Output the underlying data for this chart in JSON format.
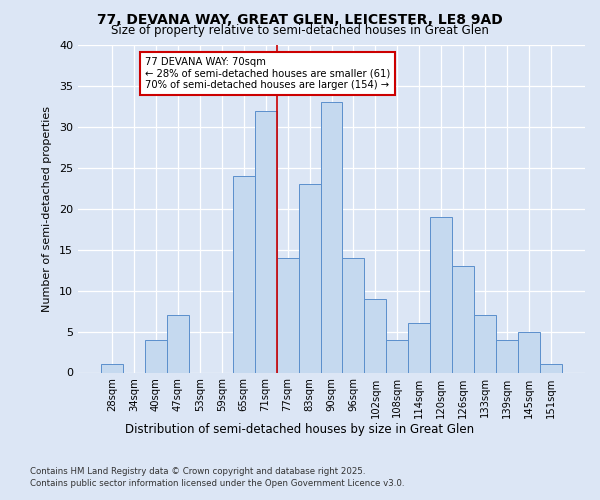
{
  "title1": "77, DEVANA WAY, GREAT GLEN, LEICESTER, LE8 9AD",
  "title2": "Size of property relative to semi-detached houses in Great Glen",
  "xlabel": "Distribution of semi-detached houses by size in Great Glen",
  "ylabel": "Number of semi-detached properties",
  "categories": [
    "28sqm",
    "34sqm",
    "40sqm",
    "47sqm",
    "53sqm",
    "59sqm",
    "65sqm",
    "71sqm",
    "77sqm",
    "83sqm",
    "90sqm",
    "96sqm",
    "102sqm",
    "108sqm",
    "114sqm",
    "120sqm",
    "126sqm",
    "133sqm",
    "139sqm",
    "145sqm",
    "151sqm"
  ],
  "values": [
    1,
    0,
    4,
    7,
    0,
    0,
    24,
    32,
    14,
    23,
    33,
    14,
    9,
    4,
    6,
    19,
    13,
    7,
    4,
    5,
    1
  ],
  "bar_color": "#c5d9ef",
  "bar_edge_color": "#5b8fcc",
  "highlight_x": "71sqm",
  "highlight_color": "#cc0000",
  "annotation_title": "77 DEVANA WAY: 70sqm",
  "annotation_line1": "← 28% of semi-detached houses are smaller (61)",
  "annotation_line2": "70% of semi-detached houses are larger (154) →",
  "annotation_box_color": "#cc0000",
  "ylim": [
    0,
    40
  ],
  "yticks": [
    0,
    5,
    10,
    15,
    20,
    25,
    30,
    35,
    40
  ],
  "footer1": "Contains HM Land Registry data © Crown copyright and database right 2025.",
  "footer2": "Contains public sector information licensed under the Open Government Licence v3.0.",
  "bg_color": "#dce6f5",
  "plot_bg_color": "#dce6f5",
  "grid_color": "#ffffff"
}
